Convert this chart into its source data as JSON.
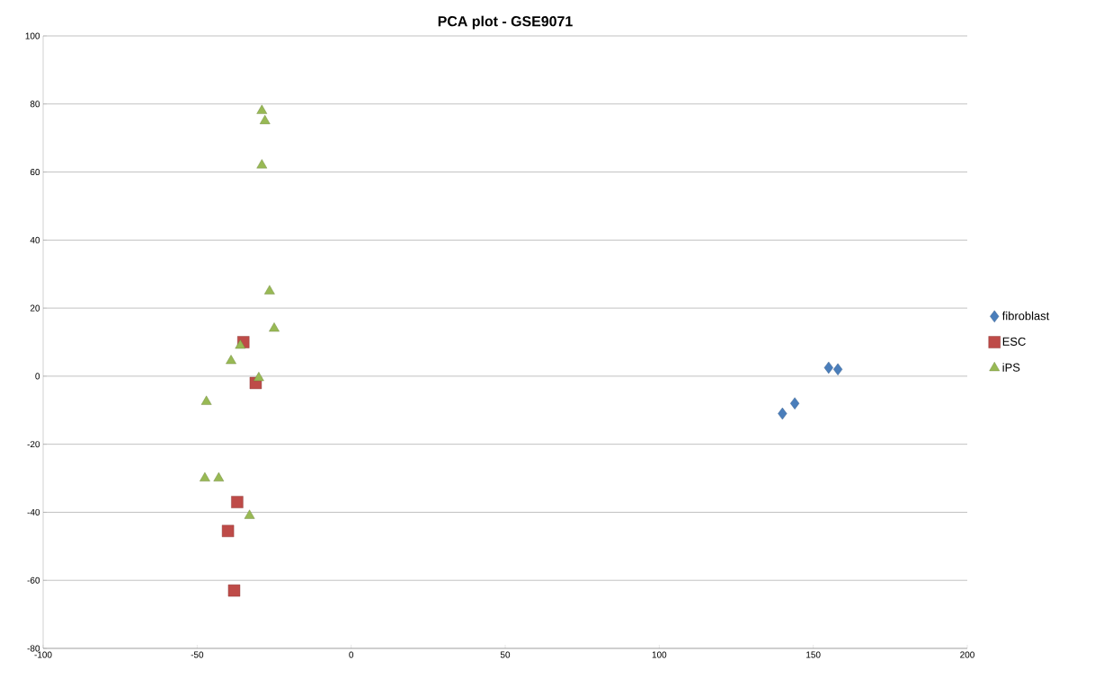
{
  "chart_data": {
    "type": "scatter",
    "title": "PCA plot - GSE9071",
    "xlim": [
      -100,
      200
    ],
    "ylim": [
      -80,
      100
    ],
    "xticks": [
      -100,
      -50,
      0,
      50,
      100,
      150,
      200
    ],
    "yticks": [
      -80,
      -60,
      -40,
      -20,
      0,
      20,
      40,
      60,
      80,
      100
    ],
    "grid": "y",
    "legend": "right",
    "series": [
      {
        "name": "fibroblast",
        "color": "#4a7ebb",
        "marker": "diamond",
        "x": [
          155,
          158,
          140,
          144
        ],
        "values": [
          2.5,
          2,
          -11,
          -8
        ]
      },
      {
        "name": "ESC",
        "color": "#be4b48",
        "marker": "square",
        "x": [
          -35,
          -31,
          -37,
          -40,
          -38
        ],
        "values": [
          10,
          -2,
          -37,
          -45.5,
          -63
        ]
      },
      {
        "name": "iPS",
        "color": "#98b954",
        "marker": "triangle",
        "x": [
          -29,
          -28,
          -29,
          -26.5,
          -25,
          -36,
          -39,
          -30,
          -47,
          -47.5,
          -43,
          -33
        ],
        "values": [
          78,
          75,
          62,
          25,
          14,
          9,
          4.5,
          -0.5,
          -7.5,
          -30,
          -30,
          -41
        ]
      }
    ]
  }
}
